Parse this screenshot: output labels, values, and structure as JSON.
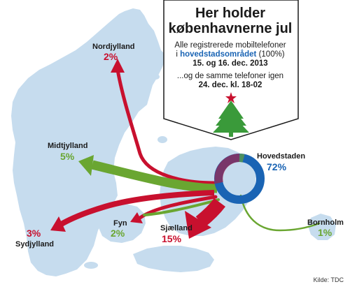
{
  "title_line1": "Her holder",
  "title_line2": "københavnerne jul",
  "subtitle": {
    "line1": "Alle registrerede mobiltelefoner",
    "line2_pre": "i ",
    "line2_highlight": "hovedstadsområdet",
    "line2_post": " (100%)",
    "line3": "15. og 16. dec. 2013",
    "line4": "...og de samme telefoner igen",
    "line5": "24. dec. kl. 18-02"
  },
  "source": "Kilde: TDC",
  "origin": {
    "name": "Hovedstaden",
    "pct": "72%"
  },
  "regions": [
    {
      "id": "nordjylland",
      "name": "Nordjylland",
      "pct": "2%"
    },
    {
      "id": "midtjylland",
      "name": "Midtjylland",
      "pct": "5%"
    },
    {
      "id": "sydjylland",
      "name": "Sydjylland",
      "pct": "3%"
    },
    {
      "id": "fyn",
      "name": "Fyn",
      "pct": "2%"
    },
    {
      "id": "sjaelland",
      "name": "Sjælland",
      "pct": "15%"
    },
    {
      "id": "bornholm",
      "name": "Bornholm",
      "pct": "1%"
    }
  ],
  "colors": {
    "land": "#c6dcee",
    "red_arrow": "#c8102e",
    "green_arrow": "#6aa631",
    "ring": "#1a64b4",
    "title_box_border": "#1a1a1a",
    "tree": "#3a9a3a",
    "star": "#c8102e"
  }
}
